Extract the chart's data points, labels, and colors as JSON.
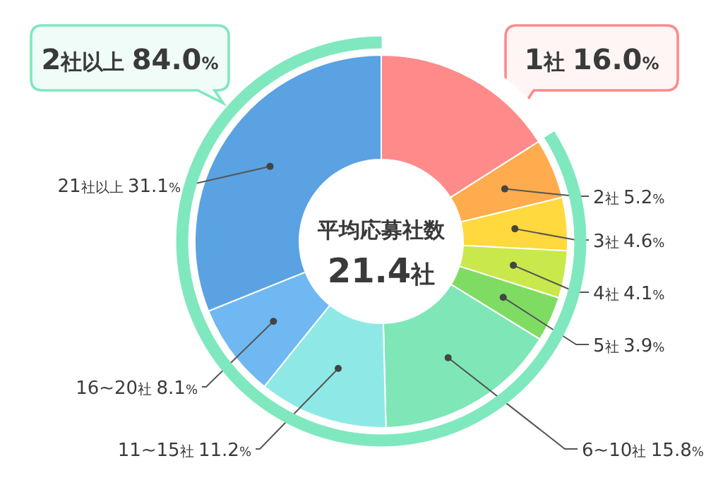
{
  "chart_data": [
    {
      "type": "donut",
      "title": "平均応募社数",
      "subtitle": "21.4社",
      "categories": [
        "1社",
        "2社",
        "3社",
        "4社",
        "5社",
        "6~10社",
        "11~15社",
        "16~20社",
        "21社以上"
      ],
      "values": [
        16.0,
        5.2,
        4.6,
        4.1,
        3.9,
        15.8,
        11.2,
        8.1,
        31.1
      ],
      "colors": [
        "#ff8a8a",
        "#ffac4e",
        "#ffd93d",
        "#c9e84c",
        "#7fdc62",
        "#7fe6b8",
        "#8ee9e6",
        "#70b8f2",
        "#5aa2e2"
      ],
      "value_labels": [
        "16.0%",
        "5.2%",
        "4.6%",
        "4.1%",
        "3.9%",
        "15.8%",
        "11.2%",
        "8.1%",
        "31.1%"
      ]
    },
    {
      "type": "donut",
      "categories": [
        null,
        "2社以上"
      ],
      "values": [
        16.0,
        84.0
      ],
      "colors": [
        "#ffffff",
        "#7fe8bf"
      ],
      "value_labels": [
        null,
        "84.0%"
      ]
    }
  ]
}
